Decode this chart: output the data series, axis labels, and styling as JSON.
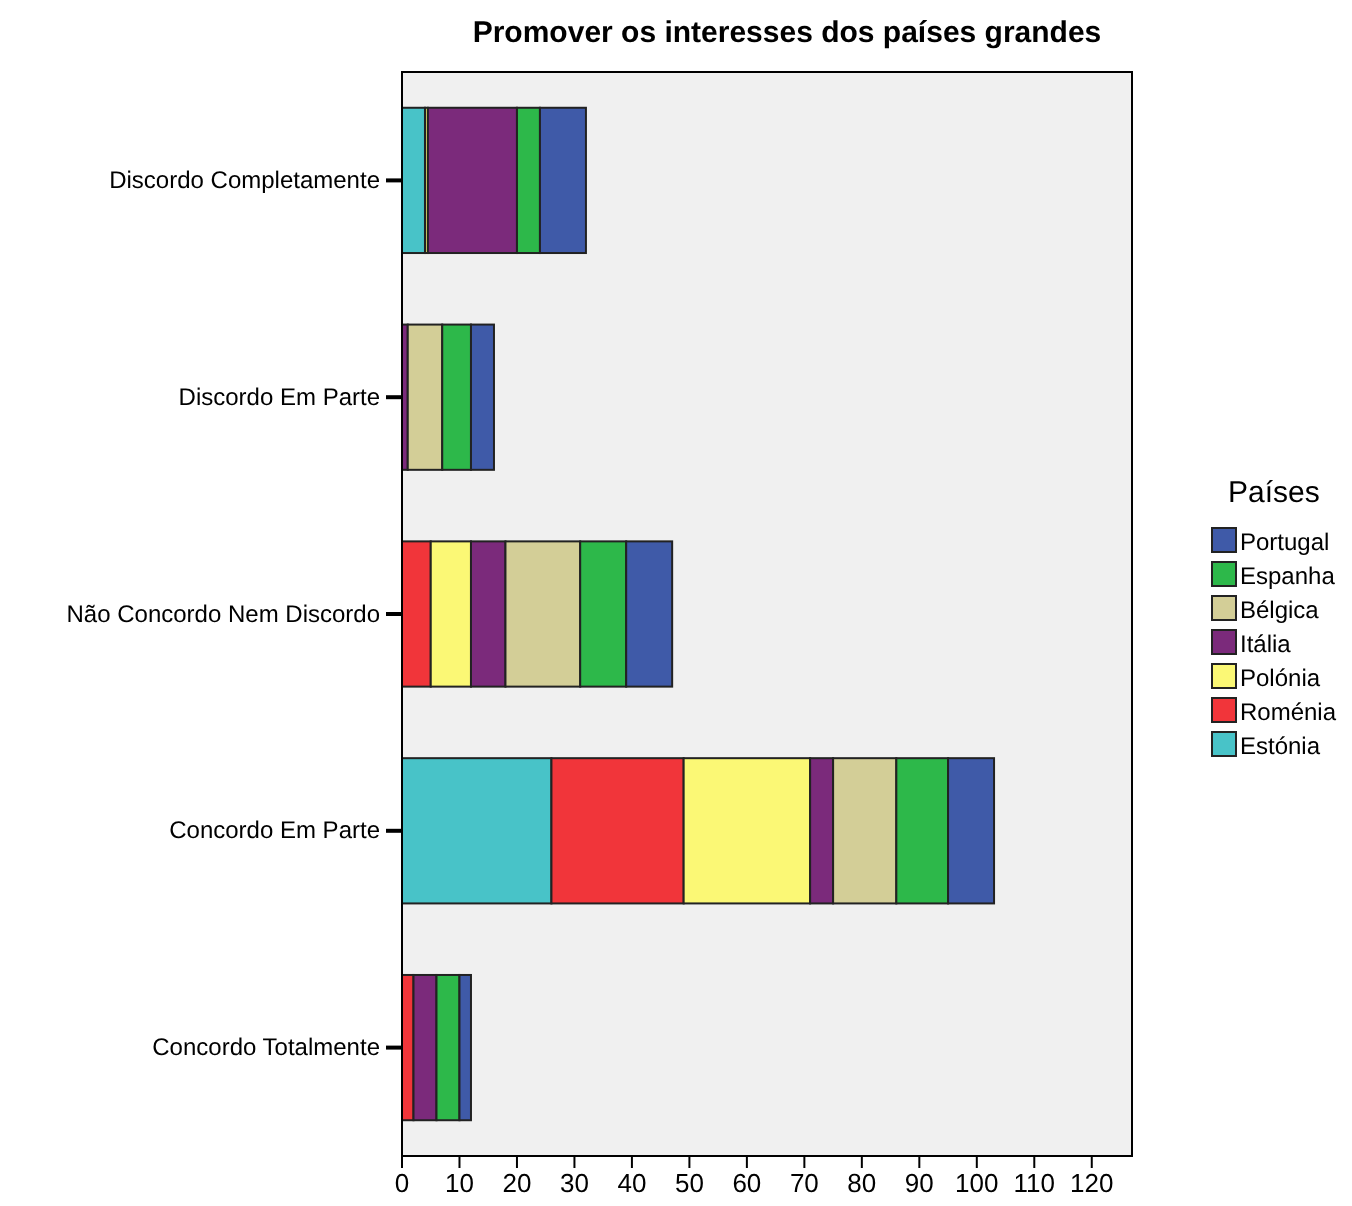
{
  "chart_data": {
    "type": "bar",
    "orientation": "horizontal",
    "stacked": true,
    "title": "Promover os interesses dos países grandes",
    "legend_title": "Países",
    "legend": "right",
    "grid": false,
    "categories": [
      "Discordo Completamente",
      "Discordo Em Parte",
      "Não Concordo Nem Discordo",
      "Concordo Em Parte",
      "Concordo Totalmente"
    ],
    "xlim": [
      0,
      127
    ],
    "xticks": [
      0,
      10,
      20,
      30,
      40,
      50,
      60,
      70,
      80,
      90,
      100,
      110,
      120
    ],
    "series": [
      {
        "name": "Estónia",
        "color": "#48c3c8",
        "values": [
          4,
          0,
          0,
          26,
          0
        ]
      },
      {
        "name": "Roménia",
        "color": "#f1353a",
        "values": [
          0,
          0,
          5,
          23,
          2
        ]
      },
      {
        "name": "Polónia",
        "color": "#fbf875",
        "values": [
          0.5,
          0,
          7,
          22,
          0
        ]
      },
      {
        "name": "Itália",
        "color": "#7b2a7b",
        "values": [
          15.5,
          1,
          6,
          4,
          4
        ]
      },
      {
        "name": "Bélgica",
        "color": "#d3ce97",
        "values": [
          0,
          6,
          13,
          11,
          0
        ]
      },
      {
        "name": "Espanha",
        "color": "#2db84a",
        "values": [
          4,
          5,
          8,
          9,
          4
        ]
      },
      {
        "name": "Portugal",
        "color": "#3f5aa8",
        "values": [
          8,
          4,
          8,
          8,
          2
        ]
      }
    ]
  }
}
